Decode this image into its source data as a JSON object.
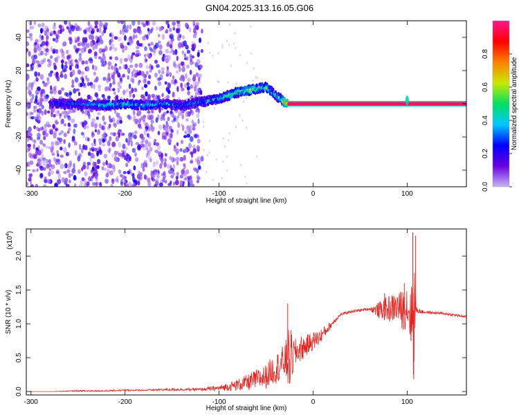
{
  "figure": {
    "title": "GN04.2025.313.16.05.G06"
  },
  "colors": {
    "background": "#ffffff",
    "axis": "#000000",
    "snr_line": "#e8231f",
    "spectrum_center": "#e8231f",
    "colormap": [
      "#c8b4f4",
      "#6a00e0",
      "#0000ff",
      "#00c8ff",
      "#00e060",
      "#c8e800",
      "#ff8000",
      "#ff0000",
      "#ff1493"
    ]
  },
  "chart_data": [
    {
      "type": "heatmap",
      "title": "",
      "xlabel": "Height of straight line (km)",
      "ylabel": "Frequency (Hz)",
      "xlim": [
        -305,
        163
      ],
      "ylim": [
        -50,
        50
      ],
      "xticks": [
        "-300",
        "-200",
        "-100",
        "0",
        "100"
      ],
      "xtick_values": [
        -300,
        -200,
        -100,
        0,
        100
      ],
      "yticks": [
        "40",
        "20",
        "0",
        "-20",
        "-40"
      ],
      "ytick_values": [
        40,
        20,
        0,
        -20,
        -40
      ],
      "colorbar": {
        "label": "Normalized spectral amplitude",
        "range": [
          0,
          1
        ],
        "ticks": [
          "0.0",
          "0.2",
          "0.4",
          "0.6",
          "0.8"
        ],
        "tick_values": [
          0,
          0.2,
          0.4,
          0.6,
          0.8
        ]
      },
      "noise_region_x": [
        -305,
        -118
      ],
      "ridge": {
        "x": [
          -280,
          -250,
          -220,
          -200,
          -180,
          -160,
          -140,
          -120,
          -100,
          -90,
          -80,
          -70,
          -60,
          -50,
          -45,
          -40,
          -35,
          -30,
          -20,
          0,
          50,
          90,
          100,
          110,
          163
        ],
        "y": [
          0,
          0,
          -1,
          0,
          -1,
          0,
          -1,
          1,
          3,
          5,
          7,
          8,
          9,
          10,
          8,
          5,
          3,
          1,
          0,
          0,
          0,
          0,
          1,
          0,
          0
        ],
        "peak_amplitude": [
          0.3,
          0.35,
          0.45,
          0.5,
          0.45,
          0.4,
          0.35,
          0.4,
          0.5,
          0.55,
          0.6,
          0.62,
          0.65,
          0.6,
          0.55,
          0.5,
          0.6,
          0.9,
          1.0,
          1.0,
          1.0,
          1.0,
          0.9,
          1.0,
          1.0
        ]
      },
      "tone_line": {
        "x_start": -27,
        "x_end": 163,
        "y": 0,
        "amplitude": 1.0
      }
    },
    {
      "type": "line",
      "title": "",
      "xlabel": "Height of straight line (km)",
      "ylabel": "SNR (10 * v/v)",
      "multiplier": "(x10",
      "multiplier_exp": "4",
      "xlim": [
        -305,
        163
      ],
      "ylim": [
        -0.05,
        2.4
      ],
      "xticks": [
        "-300",
        "-200",
        "-100",
        "0",
        "100"
      ],
      "xtick_values": [
        -300,
        -200,
        -100,
        0,
        100
      ],
      "yticks": [
        "0.0",
        "0.5",
        "1.0",
        "1.5",
        "2.0"
      ],
      "ytick_values": [
        0,
        0.5,
        1.0,
        1.5,
        2.0
      ],
      "series": [
        {
          "x": [
            -305,
            -280,
            -250,
            -220,
            -200,
            -180,
            -150,
            -120,
            -110,
            -100,
            -90,
            -80,
            -70,
            -60,
            -50,
            -45,
            -40,
            -35,
            -30,
            -25,
            -20,
            -15,
            -10,
            -5,
            0,
            5,
            10,
            15,
            20,
            25,
            30,
            40,
            50,
            60,
            70,
            80,
            90,
            95,
            100,
            103,
            105,
            107,
            108,
            110,
            115,
            120,
            130,
            140,
            150,
            160,
            163
          ],
          "y": [
            0.0,
            0.0,
            0.01,
            0.01,
            0.02,
            0.02,
            0.03,
            0.03,
            0.04,
            0.05,
            0.07,
            0.1,
            0.13,
            0.18,
            0.22,
            0.3,
            0.33,
            0.4,
            0.45,
            0.48,
            0.55,
            0.62,
            0.65,
            0.7,
            0.75,
            0.78,
            0.85,
            0.92,
            1.0,
            1.08,
            1.14,
            1.18,
            1.2,
            1.22,
            1.2,
            1.22,
            1.25,
            1.2,
            1.28,
            1.15,
            1.1,
            1.2,
            1.25,
            1.2,
            1.18,
            1.17,
            1.16,
            1.15,
            1.13,
            1.11,
            1.1
          ],
          "noise": [
            0,
            0,
            0.01,
            0.01,
            0.01,
            0.01,
            0.02,
            0.02,
            0.03,
            0.04,
            0.06,
            0.09,
            0.12,
            0.15,
            0.18,
            0.2,
            0.22,
            0.24,
            0.26,
            0.5,
            0.22,
            0.2,
            0.18,
            0.15,
            0.14,
            0.12,
            0.1,
            0.07,
            0.05,
            0.03,
            0.02,
            0.02,
            0.02,
            0.02,
            0.12,
            0.2,
            0.22,
            0.3,
            0.35,
            0.4,
            0.5,
            1.1,
            0.6,
            0.05,
            0.03,
            0.02,
            0.02,
            0.02,
            0.02,
            0.02,
            0.02
          ]
        }
      ],
      "spikes": [
        {
          "x": -27,
          "y": 1.3
        },
        {
          "x": -25,
          "y": 0.12
        },
        {
          "x": 76,
          "y": 1.45
        },
        {
          "x": 97,
          "y": 1.6
        },
        {
          "x": 104,
          "y": 0.75
        },
        {
          "x": 106,
          "y": 2.35
        },
        {
          "x": 107,
          "y": 0.18
        },
        {
          "x": 109,
          "y": 2.3
        }
      ]
    }
  ]
}
